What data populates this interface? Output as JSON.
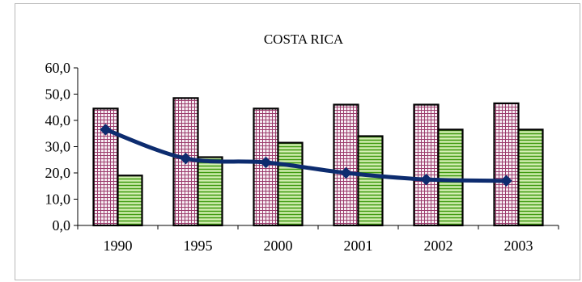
{
  "chart_data": {
    "type": "bar",
    "title": "COSTA RICA",
    "xlabel": "",
    "ylabel": "",
    "categories": [
      "1990",
      "1995",
      "2000",
      "2001",
      "2002",
      "2003"
    ],
    "ylim": [
      0,
      60
    ],
    "yticks": [
      "0,0",
      "10,0",
      "20,0",
      "30,0",
      "40,0",
      "50,0",
      "60,0"
    ],
    "grid": false,
    "legend": "none",
    "series": [
      {
        "type": "bar",
        "pattern": "grid-pink",
        "color": "#9b3b6c",
        "values": [
          44.5,
          48.5,
          44.5,
          46.0,
          46.0,
          46.5
        ]
      },
      {
        "type": "bar",
        "pattern": "horizontal-stripes-green",
        "color": "#52a818",
        "values": [
          19.0,
          26.0,
          31.5,
          34.0,
          36.5,
          36.5
        ]
      },
      {
        "type": "line",
        "color": "#0d2c6f",
        "marker": "diamond",
        "values": [
          36.5,
          25.5,
          24.0,
          20.0,
          17.5,
          17.0
        ]
      }
    ]
  }
}
